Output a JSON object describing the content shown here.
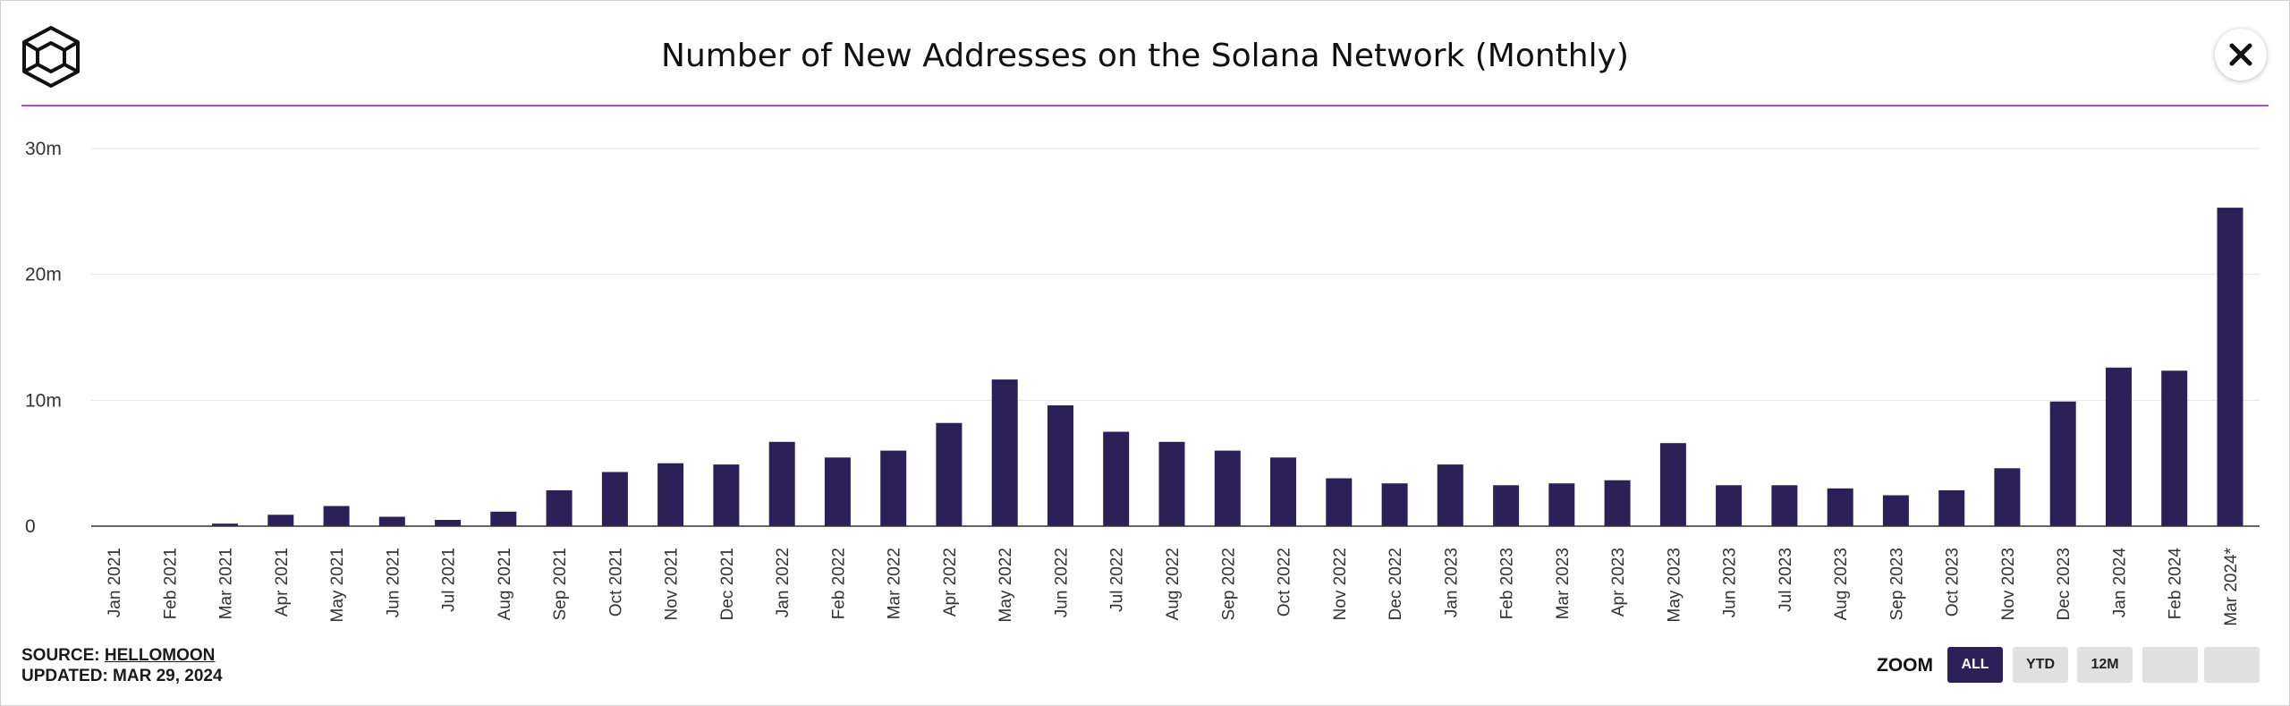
{
  "header": {
    "title": "Number of New Addresses on the Solana Network (Monthly)",
    "logo_icon": "cube-logo-icon",
    "close_icon": "close-icon"
  },
  "colors": {
    "bar": "#2b2058",
    "accent_rule": "#a64ee0",
    "gridline": "#e6e6e6",
    "zoom_active_bg": "#2b2058",
    "zoom_inactive_bg": "#e0e0e0"
  },
  "chart_data": {
    "type": "bar",
    "title": "Number of New Addresses on the Solana Network (Monthly)",
    "xlabel": "",
    "ylabel": "",
    "ylim": [
      0,
      30000000
    ],
    "yticks": [
      {
        "value": 0,
        "label": "0"
      },
      {
        "value": 10000000,
        "label": "10m"
      },
      {
        "value": 20000000,
        "label": "20m"
      },
      {
        "value": 30000000,
        "label": "30m"
      }
    ],
    "grid": true,
    "legend": "none",
    "categories": [
      "Jan 2021",
      "Feb 2021",
      "Mar 2021",
      "Apr 2021",
      "May 2021",
      "Jun 2021",
      "Jul 2021",
      "Aug 2021",
      "Sep 2021",
      "Oct 2021",
      "Nov 2021",
      "Dec 2021",
      "Jan 2022",
      "Feb 2022",
      "Mar 2022",
      "Apr 2022",
      "May 2022",
      "Jun 2022",
      "Jul 2022",
      "Aug 2022",
      "Sep 2022",
      "Oct 2022",
      "Nov 2022",
      "Dec 2022",
      "Jan 2023",
      "Feb 2023",
      "Mar 2023",
      "Apr 2023",
      "May 2023",
      "Jun 2023",
      "Jul 2023",
      "Aug 2023",
      "Sep 2023",
      "Oct 2023",
      "Nov 2023",
      "Dec 2023",
      "Jan 2024",
      "Feb 2024",
      "Mar 2024*"
    ],
    "values": [
      0,
      0,
      200000,
      900000,
      1600000,
      750000,
      500000,
      1150000,
      2850000,
      4300000,
      5000000,
      4900000,
      6700000,
      5450000,
      6000000,
      8200000,
      11650000,
      9600000,
      7500000,
      6700000,
      6000000,
      5450000,
      3800000,
      3400000,
      4900000,
      3250000,
      3400000,
      3650000,
      6600000,
      3250000,
      3250000,
      3000000,
      2450000,
      2850000,
      4600000,
      9900000,
      12600000,
      12350000,
      25300000
    ]
  },
  "footer": {
    "source_prefix": "SOURCE:",
    "source_name": "HELLOMOON",
    "updated": "UPDATED: MAR 29, 2024"
  },
  "zoom": {
    "label": "ZOOM",
    "buttons": [
      {
        "label": "ALL",
        "active": true
      },
      {
        "label": "YTD",
        "active": false
      },
      {
        "label": "12M",
        "active": false
      },
      {
        "label": "",
        "active": false
      },
      {
        "label": "",
        "active": false
      }
    ]
  }
}
